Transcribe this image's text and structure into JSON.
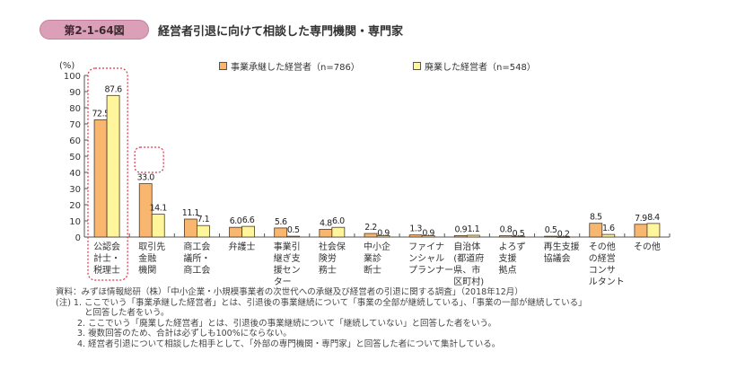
{
  "header": {
    "figure_number": "第2-1-64図",
    "title": "経営者引退に向けて相談した専門機関・専門家"
  },
  "colors": {
    "series1": "#f9b66f",
    "series2": "#fff59a",
    "bar_border": "#4a3a2a",
    "badge": "#dba0b8",
    "highlight": "#d9324a"
  },
  "chart_data": {
    "type": "bar",
    "title": "経営者引退に向けて相談した専門機関・専門家",
    "ylabel": "(%)",
    "xlabel": "",
    "ylim": [
      0,
      100
    ],
    "yticks": [
      0,
      10,
      20,
      30,
      40,
      50,
      60,
      70,
      80,
      90,
      100
    ],
    "grid": false,
    "legend_position": "top",
    "categories": [
      "公認会計士・税理士",
      "取引先金融機関",
      "商工会議所・商工会",
      "弁護士",
      "事業引継ぎ支援センター",
      "社会保険労務士",
      "中小企業診断士",
      "ファイナンシャルプランナー",
      "自治体(都道府県、市区町村)",
      "よろず支援拠点",
      "再生支援協議会",
      "その他の経営コンサルタント",
      "その他"
    ],
    "category_lines": [
      [
        "公認会",
        "計士・",
        "税理士"
      ],
      [
        "取引先",
        "金融",
        "機関"
      ],
      [
        "商工会",
        "議所・",
        "商工会"
      ],
      [
        "弁護士"
      ],
      [
        "事業引",
        "継ぎ支",
        "援セン",
        "ター"
      ],
      [
        "社会保",
        "険労",
        "務士"
      ],
      [
        "中小企",
        "業診",
        "断士"
      ],
      [
        "ファイナ",
        "ンシャル",
        "プランナー"
      ],
      [
        "自治体",
        "(都道府",
        "県、市",
        "区町村)"
      ],
      [
        "よろず",
        "支援",
        "拠点"
      ],
      [
        "再生支援",
        "協議会"
      ],
      [
        "その他",
        "の経営",
        "コンサ",
        "ルタント"
      ],
      [
        "その他"
      ]
    ],
    "series": [
      {
        "name": "事業承継した経営者（n=786）",
        "values": [
          72.5,
          33.0,
          11.1,
          6.0,
          5.6,
          4.8,
          2.2,
          1.3,
          0.9,
          0.8,
          0.5,
          8.5,
          7.9
        ]
      },
      {
        "name": "廃業した経営者（n=548）",
        "values": [
          87.6,
          14.1,
          7.1,
          6.6,
          0.5,
          6.0,
          0.9,
          0.9,
          1.1,
          0.5,
          0.2,
          1.6,
          8.4
        ]
      }
    ],
    "value_labels": [
      [
        "72.5",
        "33.0",
        "11.1",
        "6.0",
        "5.6",
        "4.8",
        "2.2",
        "1.3",
        "0.9",
        "0.8",
        "0.5",
        "8.5",
        "7.9"
      ],
      [
        "87.6",
        "14.1",
        "7.1",
        "6.6",
        "0.5",
        "6.0",
        "0.9",
        "0.9",
        "1.1",
        "0.5",
        "0.2",
        "1.6",
        "8.4"
      ]
    ],
    "annotations": [
      {
        "type": "dotted-box",
        "target": "公認会計士・税理士"
      },
      {
        "type": "dotted-box",
        "target": "取引先金融機関 33.0"
      }
    ]
  },
  "notes": {
    "source": "資料：みずほ情報総研（株）「中小企業・小規模事業者の次世代への承継及び経営者の引退に関する調査」（2018年12月）",
    "note1_a": "(注) 1. ここでいう「事業承継した経営者」とは、引退後の事業継続について「事業の全部が継続している」、「事業の一部が継続している」",
    "note1_b": "と回答した者をいう。",
    "note2": "2. ここでいう「廃業した経営者」とは、引退後の事業継続について「継続していない」と回答した者をいう。",
    "note3": "3. 複数回答のため、合計は必ずしも100%にならない。",
    "note4": "4. 経営者引退について相談した相手として、「外部の専門機関・専門家」と回答した者について集計している。"
  }
}
